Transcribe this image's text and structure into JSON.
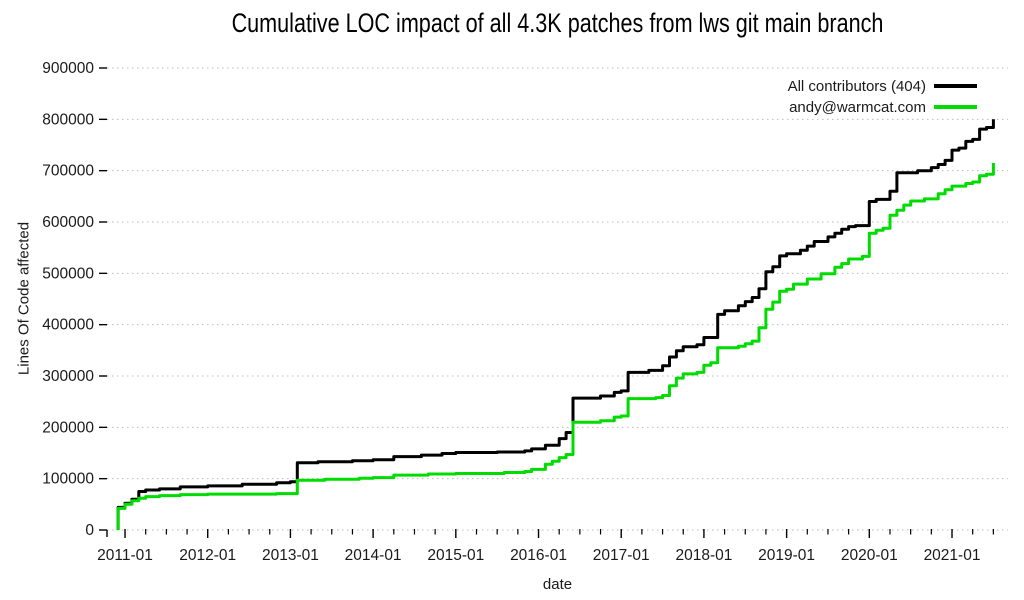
{
  "chart_data": {
    "type": "line",
    "step": true,
    "title": "Cumulative LOC impact of all 4.3K patches from lws git main branch",
    "xlabel": "date",
    "ylabel": "Lines Of Code affected",
    "xlim": [
      2010.782,
      2021.677
    ],
    "ylim": [
      0,
      900000
    ],
    "grid": "horizontal-dotted",
    "legend_position": "top-right-inside",
    "xticks": {
      "major_years": [
        2011,
        2012,
        2013,
        2014,
        2015,
        2016,
        2017,
        2018,
        2019,
        2020,
        2021
      ],
      "labels": [
        "2011-01",
        "2012-01",
        "2013-01",
        "2014-01",
        "2015-01",
        "2016-01",
        "2017-01",
        "2018-01",
        "2019-01",
        "2020-01",
        "2021-01"
      ],
      "minor_interval_years": 0.25
    },
    "yticks": [
      0,
      100000,
      200000,
      300000,
      400000,
      500000,
      600000,
      700000,
      800000,
      900000
    ],
    "colors": {
      "grid": "#bdbdbd",
      "tick": "#000000",
      "text": "#1a1a1a"
    },
    "series": [
      {
        "name": "All contributors (404)",
        "color": "#000000",
        "points": [
          [
            "2010-12",
            0
          ],
          [
            "2010-12",
            44000
          ],
          [
            "2011-01",
            52000
          ],
          [
            "2011-02",
            60000
          ],
          [
            "2011-03",
            75000
          ],
          [
            "2011-04",
            78000
          ],
          [
            "2011-06",
            80000
          ],
          [
            "2011-09",
            84000
          ],
          [
            "2012-01",
            86000
          ],
          [
            "2012-06",
            89000
          ],
          [
            "2012-11",
            92000
          ],
          [
            "2013-01",
            94000
          ],
          [
            "2013-02",
            131000
          ],
          [
            "2013-05",
            133000
          ],
          [
            "2013-10",
            135000
          ],
          [
            "2014-01",
            137000
          ],
          [
            "2014-04",
            143000
          ],
          [
            "2014-08",
            146000
          ],
          [
            "2014-11",
            149000
          ],
          [
            "2015-01",
            151000
          ],
          [
            "2015-07",
            152000
          ],
          [
            "2015-11",
            154000
          ],
          [
            "2015-12",
            158000
          ],
          [
            "2016-02",
            165000
          ],
          [
            "2016-04",
            178000
          ],
          [
            "2016-05",
            190000
          ],
          [
            "2016-06",
            200000
          ],
          [
            "2016-06",
            257000
          ],
          [
            "2016-10",
            261000
          ],
          [
            "2016-12",
            268000
          ],
          [
            "2017-01",
            271000
          ],
          [
            "2017-02",
            307000
          ],
          [
            "2017-05",
            311000
          ],
          [
            "2017-07",
            320000
          ],
          [
            "2017-08",
            337000
          ],
          [
            "2017-09",
            349000
          ],
          [
            "2017-10",
            357000
          ],
          [
            "2017-12",
            361000
          ],
          [
            "2018-01",
            375000
          ],
          [
            "2018-03",
            420000
          ],
          [
            "2018-04",
            427000
          ],
          [
            "2018-06",
            437000
          ],
          [
            "2018-07",
            445000
          ],
          [
            "2018-08",
            453000
          ],
          [
            "2018-09",
            470000
          ],
          [
            "2018-10",
            503000
          ],
          [
            "2018-11",
            513000
          ],
          [
            "2018-12",
            534000
          ],
          [
            "2019-01",
            538000
          ],
          [
            "2019-03",
            545000
          ],
          [
            "2019-04",
            553000
          ],
          [
            "2019-05",
            562000
          ],
          [
            "2019-07",
            571000
          ],
          [
            "2019-08",
            578000
          ],
          [
            "2019-09",
            586000
          ],
          [
            "2019-10",
            591000
          ],
          [
            "2019-11",
            593000
          ],
          [
            "2020-01",
            640000
          ],
          [
            "2020-02",
            644000
          ],
          [
            "2020-04",
            660000
          ],
          [
            "2020-05",
            672000
          ],
          [
            "2020-05",
            696000
          ],
          [
            "2020-08",
            700000
          ],
          [
            "2020-10",
            706000
          ],
          [
            "2020-11",
            712000
          ],
          [
            "2020-12",
            720000
          ],
          [
            "2021-01",
            740000
          ],
          [
            "2021-02",
            744000
          ],
          [
            "2021-03",
            757000
          ],
          [
            "2021-04",
            761000
          ],
          [
            "2021-05",
            781000
          ],
          [
            "2021-06",
            784000
          ],
          [
            "2021-07",
            800000
          ]
        ]
      },
      {
        "name": "andy@warmcat.com",
        "color": "#00dc00",
        "points": [
          [
            "2010-12",
            0
          ],
          [
            "2010-12",
            42000
          ],
          [
            "2011-01",
            50000
          ],
          [
            "2011-02",
            57000
          ],
          [
            "2011-03",
            62000
          ],
          [
            "2011-04",
            65000
          ],
          [
            "2011-06",
            67000
          ],
          [
            "2011-09",
            69000
          ],
          [
            "2012-01",
            70000
          ],
          [
            "2012-11",
            71000
          ],
          [
            "2013-02",
            97000
          ],
          [
            "2013-06",
            99000
          ],
          [
            "2013-11",
            101000
          ],
          [
            "2014-01",
            102000
          ],
          [
            "2014-04",
            107000
          ],
          [
            "2014-09",
            109000
          ],
          [
            "2015-01",
            110000
          ],
          [
            "2015-08",
            112000
          ],
          [
            "2015-11",
            114000
          ],
          [
            "2015-12",
            118000
          ],
          [
            "2016-02",
            128000
          ],
          [
            "2016-03",
            134000
          ],
          [
            "2016-04",
            141000
          ],
          [
            "2016-05",
            147000
          ],
          [
            "2016-06",
            153000
          ],
          [
            "2016-06",
            210000
          ],
          [
            "2016-10",
            213000
          ],
          [
            "2016-12",
            220000
          ],
          [
            "2017-01",
            222000
          ],
          [
            "2017-02",
            256000
          ],
          [
            "2017-06",
            258000
          ],
          [
            "2017-07",
            262000
          ],
          [
            "2017-08",
            281000
          ],
          [
            "2017-09",
            296000
          ],
          [
            "2017-10",
            304000
          ],
          [
            "2017-12",
            307000
          ],
          [
            "2018-01",
            321000
          ],
          [
            "2018-02",
            326000
          ],
          [
            "2018-03",
            355000
          ],
          [
            "2018-06",
            358000
          ],
          [
            "2018-07",
            363000
          ],
          [
            "2018-08",
            368000
          ],
          [
            "2018-09",
            385000
          ],
          [
            "2018-09",
            394000
          ],
          [
            "2018-10",
            420000
          ],
          [
            "2018-10",
            430000
          ],
          [
            "2018-11",
            444000
          ],
          [
            "2018-12",
            465000
          ],
          [
            "2019-01",
            469000
          ],
          [
            "2019-02",
            479000
          ],
          [
            "2019-04",
            489000
          ],
          [
            "2019-06",
            499000
          ],
          [
            "2019-08",
            512000
          ],
          [
            "2019-09",
            519000
          ],
          [
            "2019-10",
            528000
          ],
          [
            "2019-12",
            533000
          ],
          [
            "2020-01",
            578000
          ],
          [
            "2020-02",
            584000
          ],
          [
            "2020-03",
            588000
          ],
          [
            "2020-04",
            613000
          ],
          [
            "2020-05",
            623000
          ],
          [
            "2020-06",
            633000
          ],
          [
            "2020-07",
            641000
          ],
          [
            "2020-09",
            645000
          ],
          [
            "2020-11",
            655000
          ],
          [
            "2020-12",
            663000
          ],
          [
            "2021-01",
            670000
          ],
          [
            "2021-03",
            675000
          ],
          [
            "2021-04",
            678000
          ],
          [
            "2021-05",
            690000
          ],
          [
            "2021-06",
            693000
          ],
          [
            "2021-07",
            715000
          ]
        ]
      }
    ]
  }
}
